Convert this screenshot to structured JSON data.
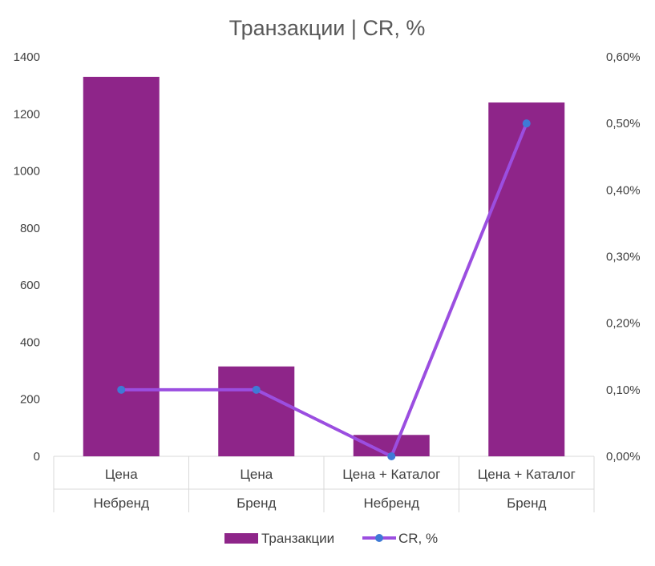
{
  "chart_data": {
    "type": "bar",
    "title": "Транзакции | CR, %",
    "categories": [
      [
        "Цена",
        "Небренд"
      ],
      [
        "Цена",
        "Бренд"
      ],
      [
        "Цена + Каталог",
        "Небренд"
      ],
      [
        "Цена + Каталог",
        "Бренд"
      ]
    ],
    "series": [
      {
        "name": "Транзакции",
        "type": "bar",
        "axis": "left",
        "values": [
          1330,
          315,
          75,
          1240
        ],
        "color": "#8e2589"
      },
      {
        "name": "CR, %",
        "type": "line",
        "axis": "right",
        "values": [
          0.001,
          0.001,
          0.0,
          0.005
        ],
        "color": "#9b4ee0",
        "marker_color": "#3f7ad6"
      }
    ],
    "ylim_left": [
      0,
      1400
    ],
    "yticks_left": [
      "0",
      "200",
      "400",
      "600",
      "800",
      "1000",
      "1200",
      "1400"
    ],
    "ylim_right": [
      0,
      0.006
    ],
    "yticks_right": [
      "0,00%",
      "0,10%",
      "0,20%",
      "0,30%",
      "0,40%",
      "0,50%",
      "0,60%"
    ],
    "grid": false,
    "legend_position": "bottom"
  }
}
